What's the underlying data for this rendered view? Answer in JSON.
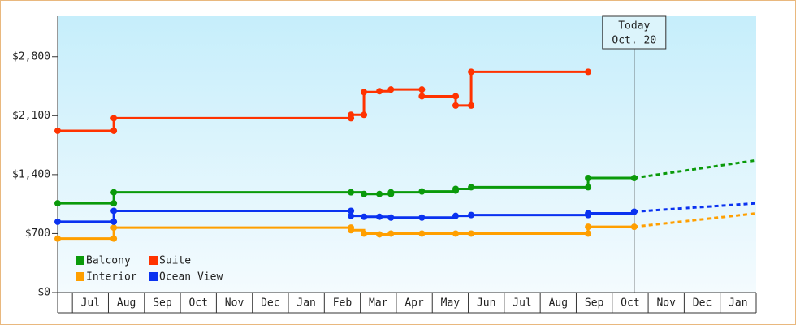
{
  "chart_data": {
    "type": "step-line",
    "categories": [
      "Jul",
      "Aug",
      "Sep",
      "Oct",
      "Nov",
      "Dec",
      "Jan",
      "Feb",
      "Mar",
      "Apr",
      "May",
      "Jun",
      "Jul",
      "Aug",
      "Sep",
      "Oct",
      "Nov",
      "Dec",
      "Jan"
    ],
    "xlim": [
      -0.41,
      19
    ],
    "ylim": [
      0,
      3280
    ],
    "yticks": [
      {
        "value": 0,
        "label": "$0"
      },
      {
        "value": 700,
        "label": "$700"
      },
      {
        "value": 1400,
        "label": "$1,400"
      },
      {
        "value": 2100,
        "label": "$2,100"
      },
      {
        "value": 2800,
        "label": "$2,800"
      }
    ],
    "today": {
      "x": 15.61,
      "label": [
        "Today",
        "Oct. 20"
      ]
    },
    "legend": "lower left",
    "series": [
      {
        "name": "Balcony",
        "color": "#0a9a0a",
        "x": [
          -0.41,
          1.15,
          1.15,
          7.74,
          8.1,
          8.53,
          8.85,
          8.85,
          9.71,
          10.65,
          10.65,
          11.08,
          14.33,
          14.33,
          15.61
        ],
        "values": [
          1060,
          1060,
          1190,
          1190,
          1170,
          1170,
          1170,
          1190,
          1200,
          1210,
          1230,
          1250,
          1250,
          1360,
          1360
        ],
        "projection": {
          "x": 19,
          "value": 1570
        }
      },
      {
        "name": "Suite",
        "color": "#ff3300",
        "x": [
          -0.41,
          1.15,
          1.15,
          7.74,
          7.74,
          8.1,
          8.1,
          8.53,
          8.85,
          9.71,
          9.71,
          10.65,
          10.65,
          11.08,
          11.08,
          14.33
        ],
        "values": [
          1920,
          1920,
          2070,
          2070,
          2110,
          2110,
          2380,
          2390,
          2410,
          2410,
          2330,
          2330,
          2220,
          2220,
          2620,
          2620
        ]
      },
      {
        "name": "Interior",
        "color": "#ff9f00",
        "x": [
          -0.41,
          1.15,
          1.15,
          7.74,
          7.74,
          8.1,
          8.53,
          8.85,
          9.71,
          10.65,
          11.08,
          14.33,
          14.33,
          15.61
        ],
        "values": [
          640,
          640,
          770,
          770,
          740,
          700,
          690,
          700,
          700,
          700,
          700,
          700,
          780,
          780
        ],
        "projection": {
          "x": 19,
          "value": 940
        }
      },
      {
        "name": "Ocean View",
        "color": "#0a32f0",
        "x": [
          -0.41,
          1.15,
          1.15,
          7.74,
          7.74,
          8.1,
          8.53,
          8.85,
          9.71,
          10.65,
          11.08,
          14.33,
          14.33,
          15.61
        ],
        "values": [
          840,
          840,
          970,
          970,
          910,
          900,
          900,
          890,
          890,
          910,
          920,
          920,
          940,
          960
        ],
        "projection": {
          "x": 19,
          "value": 1060
        }
      }
    ]
  }
}
